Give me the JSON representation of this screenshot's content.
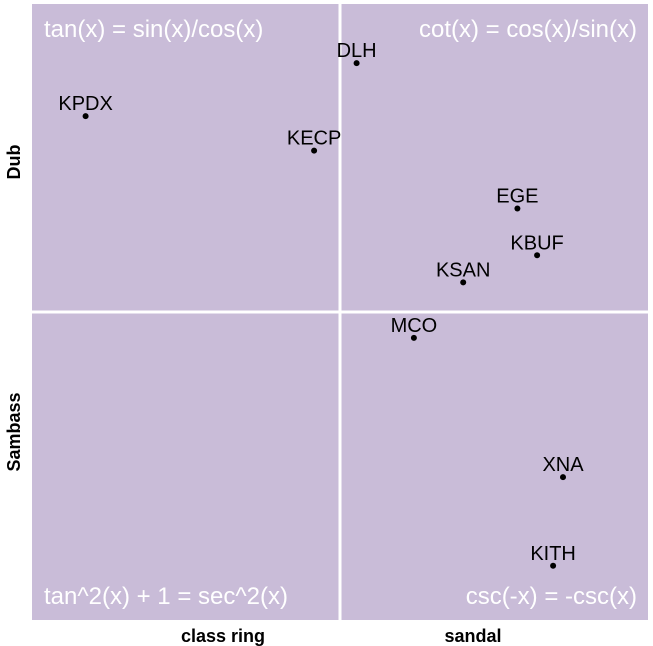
{
  "chart_data": {
    "type": "scatter",
    "xlim": [
      0,
      1
    ],
    "ylim": [
      0,
      1
    ],
    "x_categories": [
      "class ring",
      "sandal"
    ],
    "y_categories": [
      "Dub",
      "Sambass"
    ],
    "grid": false,
    "colors": {
      "panel": "#c9bcd8",
      "divider": "#ffffff",
      "point": "#000000"
    },
    "quadrant_labels": {
      "top_left": "tan(x) = sin(x)/cos(x)",
      "top_right": "cot(x) = cos(x)/sin(x)",
      "bottom_left": "tan^2(x) + 1 = sec^2(x)",
      "bottom_right": "csc(-x) = -csc(x)"
    },
    "points": [
      {
        "label": "DLH",
        "x": 0.527,
        "y": 0.904
      },
      {
        "label": "KPDX",
        "x": 0.087,
        "y": 0.818
      },
      {
        "label": "KECP",
        "x": 0.458,
        "y": 0.762
      },
      {
        "label": "EGE",
        "x": 0.788,
        "y": 0.668
      },
      {
        "label": "KBUF",
        "x": 0.82,
        "y": 0.592
      },
      {
        "label": "KSAN",
        "x": 0.7,
        "y": 0.548
      },
      {
        "label": "MCO",
        "x": 0.62,
        "y": 0.458
      },
      {
        "label": "XNA",
        "x": 0.862,
        "y": 0.232
      },
      {
        "label": "KITH",
        "x": 0.846,
        "y": 0.088
      }
    ]
  }
}
